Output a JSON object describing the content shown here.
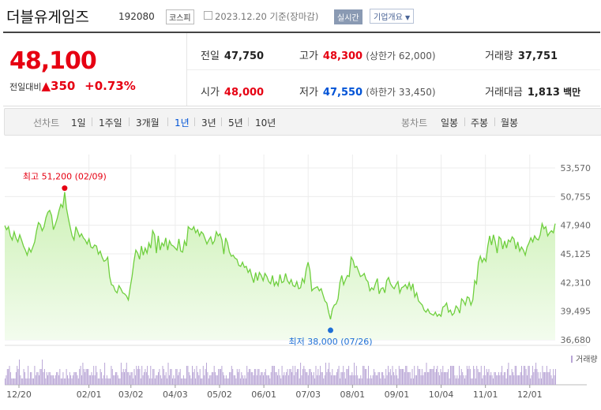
{
  "header": {
    "name": "더블유게임즈",
    "code": "192080",
    "market": "코스피",
    "date": "2023.12.20 기준(장마감)",
    "realtime": "실시간",
    "company_info": "기업개요"
  },
  "summary": {
    "price": "48,100",
    "change_label": "전일대비",
    "change_arrow": "▲",
    "change_value": "350",
    "change_pct": "+0.73%",
    "fields": [
      {
        "label": "전일",
        "value": "47,750",
        "color": "neutral"
      },
      {
        "label": "고가",
        "value": "48,300",
        "color": "up",
        "sub": "(상한가 62,000)"
      },
      {
        "label": "거래량",
        "value": "37,751",
        "color": "neutral"
      },
      {
        "label": "시가",
        "value": "48,000",
        "color": "up"
      },
      {
        "label": "저가",
        "value": "47,550",
        "color": "dn",
        "sub": "(하한가 33,450)"
      },
      {
        "label": "거래대금",
        "value": "1,813",
        "color": "neutral",
        "unit": "백만"
      }
    ]
  },
  "toolbar": {
    "line_label": "선차트",
    "periods": [
      "1일",
      "1주일",
      "3개월",
      "1년",
      "3년",
      "5년",
      "10년"
    ],
    "selected_period": "1년",
    "candle_label": "봉차트",
    "candles": [
      "일봉",
      "주봉",
      "월봉"
    ]
  },
  "chart_data": {
    "type": "area",
    "y_ticks": [
      "53,570",
      "50,755",
      "47,940",
      "45,125",
      "42,310",
      "39,495",
      "36,680"
    ],
    "ylim": [
      36680,
      53570
    ],
    "x_ticks": [
      "12/20",
      "02/01",
      "03/02",
      "04/03",
      "05/02",
      "06/01",
      "07/03",
      "08/01",
      "09/01",
      "10/04",
      "11/01",
      "12/01"
    ],
    "high_label": "최고 51,200 (02/09)",
    "low_label": "최저 38,000 (07/26)",
    "volume_label": "거래량",
    "colors": {
      "line": "#6fcf3e",
      "fill_top": "#cdf1b6",
      "fill_bottom": "#f3fcee",
      "high": "#e60012",
      "low": "#1f6fd6",
      "volume": "#b9a6d6"
    },
    "series": [
      {
        "values": [
          47900,
          47500,
          47800,
          46900,
          46500,
          47300,
          46700,
          46300,
          47000,
          46500,
          45900,
          45500,
          45000,
          45700,
          45300,
          45800,
          46300,
          47400,
          48200,
          48000,
          47400,
          47800,
          48700,
          49200,
          49400,
          48900,
          47500,
          48000,
          48600,
          49400,
          50000,
          49700,
          51200,
          49600,
          48600,
          47700,
          46900,
          46500,
          47800,
          47300,
          46800,
          47100,
          46700,
          46500,
          46100,
          46600,
          45800,
          45700,
          46000,
          45900,
          45100,
          45400,
          44800,
          44400,
          44500,
          44800,
          42900,
          42100,
          42000,
          41500,
          41300,
          42000,
          41700,
          41300,
          41200,
          41000,
          40600,
          41800,
          42900,
          44400,
          45500,
          45200,
          44600,
          45900,
          45000,
          45700,
          45200,
          46200,
          45700,
          47400,
          47000,
          45200,
          46900,
          45500,
          46200,
          45900,
          46700,
          45500,
          46400,
          46000,
          45900,
          45700,
          45500,
          46600,
          45400,
          45300,
          46400,
          45900,
          47800,
          47600,
          47500,
          47800,
          47200,
          47500,
          46900,
          47300,
          47100,
          46600,
          46100,
          46500,
          46800,
          46100,
          46400,
          47300,
          46900,
          47100,
          46500,
          45100,
          46700,
          46200,
          45300,
          44900,
          45000,
          44700,
          44600,
          44000,
          43900,
          44300,
          43800,
          43900,
          43300,
          43600,
          42900,
          42300,
          43300,
          42500,
          43300,
          43000,
          42500,
          43200,
          42900,
          42400,
          42200,
          43000,
          42000,
          42400,
          42000,
          43100,
          42300,
          42400,
          43200,
          42500,
          42200,
          42600,
          42000,
          41900,
          42400,
          41700,
          41800,
          42700,
          42300,
          43600,
          44300,
          43500,
          41500,
          41700,
          41800,
          41900,
          41500,
          41700,
          41100,
          40500,
          40300,
          39400,
          38700,
          39700,
          40100,
          40200,
          40700,
          42300,
          43000,
          42100,
          42600,
          43000,
          42900,
          44800,
          44500,
          43800,
          43900,
          43400,
          42900,
          43000,
          43200,
          42600,
          42400,
          41500,
          41800,
          41600,
          42200,
          42700,
          41200,
          41700,
          41800,
          41300,
          42500,
          42800,
          42200,
          41900,
          41700,
          42100,
          42400,
          41300,
          41800,
          41900,
          42100,
          41700,
          42300,
          41600,
          42200,
          40900,
          41300,
          40500,
          40300,
          40100,
          39600,
          39400,
          39700,
          39300,
          39200,
          39100,
          39400,
          39000,
          39200,
          39000,
          39900,
          40000,
          40300,
          39400,
          39600,
          39100,
          39300,
          40000,
          39800,
          39300,
          40700,
          40500,
          40100,
          40900,
          40800,
          40100,
          40600,
          42500,
          42200,
          44300,
          44900,
          44300,
          44700,
          44400,
          45900,
          46900,
          46000,
          47000,
          46300,
          45200,
          46800,
          46600,
          45600,
          46400,
          45700,
          46500,
          46300,
          46800,
          46600,
          45600,
          46300,
          45400,
          45800,
          45500,
          45000,
          45800,
          46200,
          46700,
          46300,
          46900,
          46600,
          46500,
          47000,
          48100,
          47600,
          47800,
          46900,
          47200,
          47400,
          47200,
          48100
        ]
      }
    ],
    "volume": [
      2,
      3,
      5,
      5,
      6,
      4,
      2,
      2,
      2,
      2,
      4,
      6,
      5,
      8,
      3,
      2,
      2,
      5,
      4,
      2,
      2,
      6,
      2,
      4,
      4,
      2,
      2,
      6,
      3,
      4,
      4,
      3,
      5,
      5,
      8,
      4,
      5,
      2,
      4,
      3,
      4,
      4,
      3,
      3,
      3,
      2,
      3,
      4,
      4,
      3,
      5,
      2,
      2,
      4,
      2,
      2,
      5,
      3,
      2,
      4,
      3,
      2,
      3,
      4,
      4,
      4,
      3,
      2,
      5,
      6,
      3,
      7,
      5,
      4,
      5,
      5,
      5,
      3,
      3,
      4,
      3,
      6,
      3,
      6,
      4,
      2,
      2,
      5,
      4,
      2,
      3,
      7,
      2,
      3,
      2,
      2,
      2,
      6,
      5,
      3,
      3,
      4,
      4,
      3,
      2,
      2,
      7,
      4,
      5,
      4,
      5,
      7,
      4,
      4,
      3,
      4,
      4,
      2,
      5,
      3,
      6,
      5,
      6,
      5,
      2,
      6,
      3,
      4,
      5,
      4,
      6,
      3,
      2,
      6,
      2,
      5,
      5,
      2,
      3,
      3,
      4,
      5,
      3,
      2,
      6,
      5,
      3,
      4,
      2,
      7,
      3,
      5,
      5,
      2,
      3,
      2,
      5,
      5,
      3,
      4,
      5,
      2,
      2,
      3,
      2,
      2,
      6,
      6,
      4,
      3,
      2,
      6,
      4,
      5,
      2,
      6,
      4,
      3,
      5,
      2,
      2,
      6,
      3,
      5,
      7,
      4,
      2,
      3,
      3,
      4,
      4,
      6,
      4,
      3,
      3,
      5,
      5,
      5,
      6,
      4,
      3,
      2,
      3,
      2,
      2,
      4,
      4,
      6,
      5,
      3,
      3,
      2,
      5,
      4,
      5,
      2,
      4,
      3,
      2,
      3,
      2,
      6,
      4,
      5,
      5,
      4,
      4,
      3,
      5,
      5,
      3,
      5,
      5,
      3,
      4,
      4,
      3,
      4,
      5,
      3,
      3,
      3,
      2,
      4,
      6,
      6,
      6,
      4,
      4,
      3,
      5,
      3,
      2,
      6,
      3,
      4,
      3,
      4,
      5,
      3,
      5,
      5,
      4,
      6,
      3,
      6,
      4,
      5,
      5,
      2,
      7,
      3,
      5,
      6,
      5,
      4,
      4,
      3,
      5,
      5,
      4,
      3,
      4,
      2,
      6,
      3,
      5,
      3,
      6,
      4,
      4,
      2,
      3,
      7,
      4,
      5,
      7,
      4,
      3,
      5,
      3,
      3,
      3,
      4,
      5,
      6,
      2,
      4,
      4,
      6,
      4,
      2,
      5,
      5,
      6,
      3,
      3,
      4,
      3,
      7,
      3,
      6,
      3,
      2,
      2,
      3,
      2,
      6,
      6,
      5,
      5,
      2,
      6,
      2,
      3,
      2,
      3,
      5,
      4,
      3,
      3,
      4,
      4,
      2,
      4,
      4,
      3,
      2,
      5,
      3,
      6,
      4,
      5,
      3,
      6,
      4,
      3,
      5,
      3,
      2,
      6,
      5,
      5,
      5,
      5,
      4,
      6,
      6,
      4,
      4,
      4,
      2,
      5,
      2,
      6,
      3,
      3,
      6,
      5,
      5,
      3,
      5,
      3,
      4,
      4,
      7,
      4,
      4,
      5,
      5,
      5,
      5,
      6,
      4,
      5,
      6,
      4,
      3,
      5,
      4,
      6,
      4,
      4,
      4,
      4,
      5,
      2,
      6,
      6,
      6,
      6,
      3,
      2,
      3,
      2,
      6,
      3,
      5,
      4,
      3,
      2,
      3,
      6,
      5,
      6,
      5,
      2,
      2,
      6,
      5,
      2,
      6,
      5,
      4,
      4,
      6,
      2,
      3,
      6,
      3,
      5,
      4,
      5,
      3,
      4,
      3,
      2,
      4,
      4,
      3,
      3,
      4,
      3,
      4,
      6,
      3,
      4,
      4,
      2,
      5,
      7,
      3,
      3,
      5,
      4,
      3,
      6,
      6,
      3,
      3,
      3,
      4,
      6,
      3,
      6,
      6,
      5,
      3,
      6,
      6,
      2,
      3,
      6,
      4,
      5,
      7,
      5,
      4,
      2,
      4,
      2,
      6,
      4,
      4,
      4,
      6,
      4,
      4,
      5,
      3,
      2,
      5,
      3,
      5
    ]
  }
}
